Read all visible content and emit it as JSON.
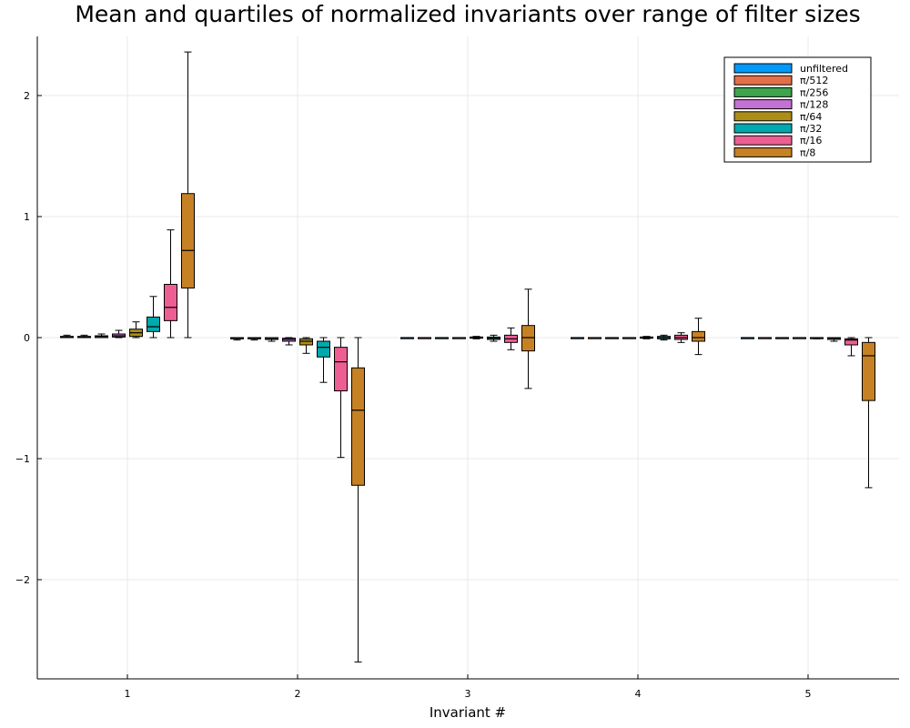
{
  "chart_data": {
    "type": "box",
    "title": "Mean and quartiles of normalized invariants over range of filter sizes",
    "xlabel": "Invariant #",
    "ylabel": "",
    "categories": [
      "1",
      "2",
      "3",
      "4",
      "5"
    ],
    "x_ticks": [
      "1",
      "2",
      "3",
      "4",
      "5"
    ],
    "y_ticks": [
      "-2",
      "-1",
      "0",
      "1",
      "2"
    ],
    "ylim": [
      -2.85,
      2.5
    ],
    "grid": true,
    "legend_position": "top-right",
    "series": [
      {
        "name": "unfiltered",
        "color": "#009AFA",
        "boxes": [
          {
            "min": 0.0,
            "q1": 0.0,
            "median": 0.005,
            "q3": 0.01,
            "max": 0.02
          },
          {
            "min": -0.02,
            "q1": -0.01,
            "median": -0.005,
            "q3": 0.0,
            "max": 0.0
          },
          {
            "min": 0.0,
            "q1": 0.0,
            "median": 0.0,
            "q3": 0.0,
            "max": 0.0
          },
          {
            "min": 0.0,
            "q1": 0.0,
            "median": 0.0,
            "q3": 0.0,
            "max": 0.0
          },
          {
            "min": 0.0,
            "q1": 0.0,
            "median": 0.0,
            "q3": 0.0,
            "max": 0.0
          }
        ]
      },
      {
        "name": "π/512",
        "color": "#E36F47",
        "boxes": [
          {
            "min": 0.0,
            "q1": 0.0,
            "median": 0.005,
            "q3": 0.01,
            "max": 0.02
          },
          {
            "min": -0.02,
            "q1": -0.01,
            "median": -0.005,
            "q3": 0.0,
            "max": 0.0
          },
          {
            "min": 0.0,
            "q1": 0.0,
            "median": 0.0,
            "q3": 0.0,
            "max": 0.0
          },
          {
            "min": 0.0,
            "q1": 0.0,
            "median": 0.0,
            "q3": 0.0,
            "max": 0.0
          },
          {
            "min": 0.0,
            "q1": 0.0,
            "median": 0.0,
            "q3": 0.0,
            "max": 0.0
          }
        ]
      },
      {
        "name": "π/256",
        "color": "#3EA44E",
        "boxes": [
          {
            "min": 0.0,
            "q1": 0.0,
            "median": 0.01,
            "q3": 0.015,
            "max": 0.03
          },
          {
            "min": -0.03,
            "q1": -0.015,
            "median": -0.01,
            "q3": 0.0,
            "max": 0.0
          },
          {
            "min": 0.0,
            "q1": 0.0,
            "median": 0.0,
            "q3": 0.0,
            "max": 0.0
          },
          {
            "min": 0.0,
            "q1": 0.0,
            "median": 0.0,
            "q3": 0.0,
            "max": 0.0
          },
          {
            "min": 0.0,
            "q1": 0.0,
            "median": 0.0,
            "q3": 0.0,
            "max": 0.0
          }
        ]
      },
      {
        "name": "π/128",
        "color": "#C371D2",
        "boxes": [
          {
            "min": 0.0,
            "q1": 0.005,
            "median": 0.015,
            "q3": 0.03,
            "max": 0.06
          },
          {
            "min": -0.06,
            "q1": -0.03,
            "median": -0.015,
            "q3": -0.005,
            "max": 0.0
          },
          {
            "min": 0.0,
            "q1": 0.0,
            "median": 0.0,
            "q3": 0.0,
            "max": 0.0
          },
          {
            "min": 0.0,
            "q1": 0.0,
            "median": 0.0,
            "q3": 0.0,
            "max": 0.0
          },
          {
            "min": 0.0,
            "q1": 0.0,
            "median": 0.0,
            "q3": 0.0,
            "max": 0.0
          }
        ]
      },
      {
        "name": "π/64",
        "color": "#AC8D18",
        "boxes": [
          {
            "min": 0.0,
            "q1": 0.01,
            "median": 0.04,
            "q3": 0.07,
            "max": 0.13
          },
          {
            "min": -0.13,
            "q1": -0.06,
            "median": -0.03,
            "q3": -0.01,
            "max": 0.0
          },
          {
            "min": -0.01,
            "q1": -0.005,
            "median": 0.0,
            "q3": 0.005,
            "max": 0.01
          },
          {
            "min": -0.01,
            "q1": -0.005,
            "median": 0.0,
            "q3": 0.005,
            "max": 0.01
          },
          {
            "min": -0.01,
            "q1": -0.005,
            "median": 0.0,
            "q3": 0.0,
            "max": 0.0
          }
        ]
      },
      {
        "name": "π/32",
        "color": "#00A9AD",
        "boxes": [
          {
            "min": 0.0,
            "q1": 0.05,
            "median": 0.09,
            "q3": 0.17,
            "max": 0.34
          },
          {
            "min": -0.37,
            "q1": -0.16,
            "median": -0.08,
            "q3": -0.03,
            "max": 0.0
          },
          {
            "min": -0.03,
            "q1": -0.015,
            "median": -0.005,
            "q3": 0.005,
            "max": 0.02
          },
          {
            "min": -0.02,
            "q1": -0.01,
            "median": 0.0,
            "q3": 0.01,
            "max": 0.02
          },
          {
            "min": -0.03,
            "q1": -0.015,
            "median": -0.005,
            "q3": 0.0,
            "max": 0.0
          }
        ]
      },
      {
        "name": "π/16",
        "color": "#ED5E93",
        "boxes": [
          {
            "min": 0.0,
            "q1": 0.14,
            "median": 0.25,
            "q3": 0.44,
            "max": 0.89
          },
          {
            "min": -0.99,
            "q1": -0.44,
            "median": -0.2,
            "q3": -0.08,
            "max": 0.0
          },
          {
            "min": -0.1,
            "q1": -0.04,
            "median": -0.01,
            "q3": 0.02,
            "max": 0.08
          },
          {
            "min": -0.04,
            "q1": -0.015,
            "median": 0.0,
            "q3": 0.02,
            "max": 0.04
          },
          {
            "min": -0.15,
            "q1": -0.06,
            "median": -0.02,
            "q3": -0.01,
            "max": 0.0
          }
        ]
      },
      {
        "name": "π/8",
        "color": "#C68125",
        "boxes": [
          {
            "min": 0.0,
            "q1": 0.41,
            "median": 0.72,
            "q3": 1.19,
            "max": 2.36
          },
          {
            "min": -2.68,
            "q1": -1.22,
            "median": -0.6,
            "q3": -0.25,
            "max": 0.0
          },
          {
            "min": -0.42,
            "q1": -0.11,
            "median": 0.0,
            "q3": 0.1,
            "max": 0.4
          },
          {
            "min": -0.14,
            "q1": -0.03,
            "median": 0.0,
            "q3": 0.05,
            "max": 0.16
          },
          {
            "min": -1.24,
            "q1": -0.52,
            "median": -0.15,
            "q3": -0.04,
            "max": 0.0
          }
        ]
      }
    ]
  }
}
